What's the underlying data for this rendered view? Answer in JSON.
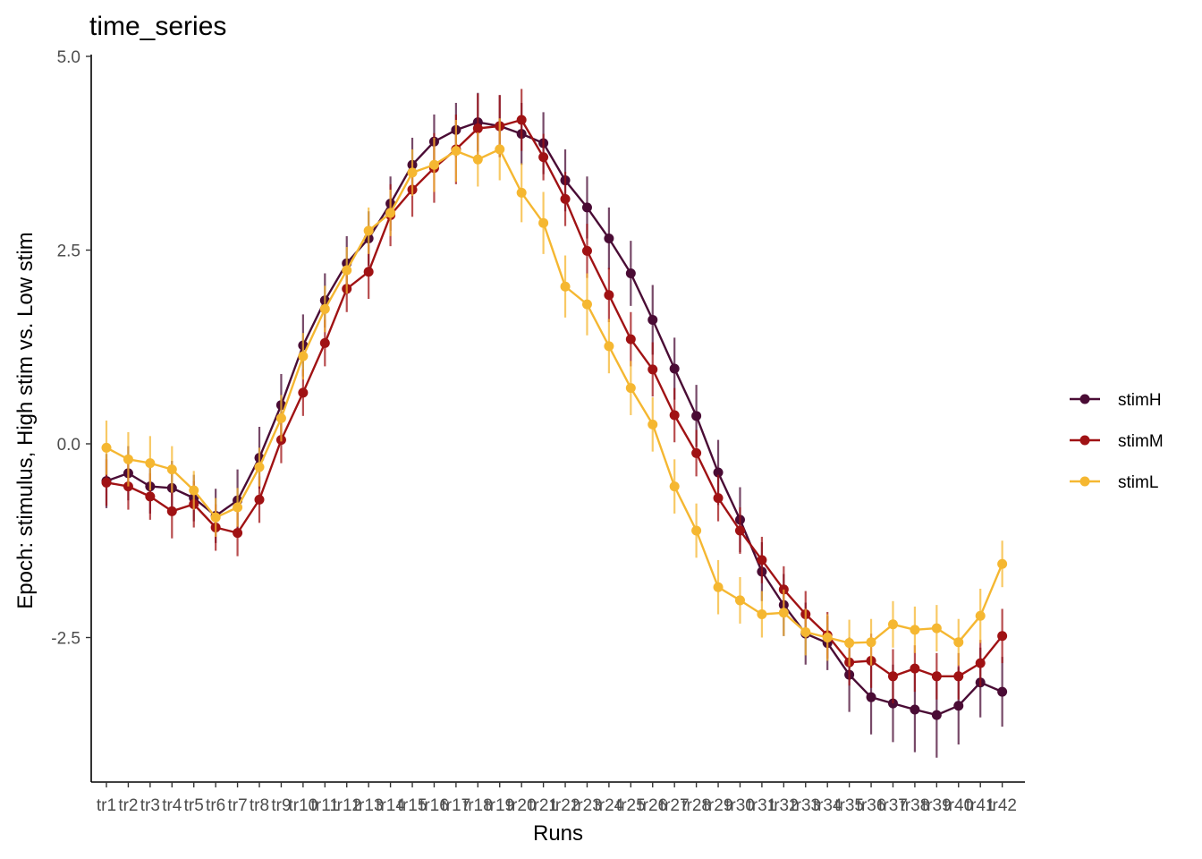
{
  "chart_data": {
    "type": "line",
    "title": "time_series",
    "xlabel": "Runs",
    "ylabel": "Epoch: stimulus, High stim vs. Low stim",
    "categories": [
      "tr1",
      "tr2",
      "tr3",
      "tr4",
      "tr5",
      "tr6",
      "tr7",
      "tr8",
      "tr9",
      "tr10",
      "tr11",
      "tr12",
      "tr13",
      "tr14",
      "tr15",
      "tr16",
      "tr17",
      "tr18",
      "tr19",
      "tr20",
      "tr21",
      "tr22",
      "tr23",
      "tr24",
      "tr25",
      "tr26",
      "tr27",
      "tr28",
      "tr29",
      "tr30",
      "tr31",
      "tr32",
      "tr33",
      "tr34",
      "tr35",
      "tr36",
      "tr37",
      "tr38",
      "tr39",
      "tr40",
      "tr41",
      "tr42"
    ],
    "yticks": [
      5.0,
      2.5,
      0.0,
      -2.5
    ],
    "ytick_labels": [
      "5.0",
      "2.5",
      "0.0",
      "-2.5"
    ],
    "ylim": [
      -4.4,
      5.0
    ],
    "grid": false,
    "legend_position": "right",
    "error_bars": true,
    "series": [
      {
        "name": "stimH",
        "color": "#4a0c35",
        "values": [
          -0.48,
          -0.38,
          -0.55,
          -0.57,
          -0.7,
          -0.93,
          -0.73,
          -0.18,
          0.5,
          1.27,
          1.85,
          2.33,
          2.65,
          3.1,
          3.6,
          3.9,
          4.05,
          4.15,
          4.1,
          4.0,
          3.88,
          3.4,
          3.05,
          2.65,
          2.2,
          1.6,
          0.97,
          0.36,
          -0.37,
          -0.98,
          -1.65,
          -2.08,
          -2.45,
          -2.57,
          -2.98,
          -3.27,
          -3.35,
          -3.43,
          -3.5,
          -3.38,
          -3.08,
          -3.2
        ],
        "errors": [
          0.35,
          0.35,
          0.35,
          0.35,
          0.3,
          0.35,
          0.4,
          0.4,
          0.4,
          0.4,
          0.35,
          0.35,
          0.35,
          0.35,
          0.35,
          0.35,
          0.35,
          0.38,
          0.4,
          0.4,
          0.4,
          0.4,
          0.4,
          0.4,
          0.42,
          0.45,
          0.4,
          0.4,
          0.42,
          0.42,
          0.38,
          0.4,
          0.4,
          0.35,
          0.48,
          0.48,
          0.5,
          0.55,
          0.55,
          0.5,
          0.45,
          0.45
        ]
      },
      {
        "name": "stimM",
        "color": "#a01214",
        "values": [
          -0.5,
          -0.55,
          -0.68,
          -0.87,
          -0.78,
          -1.08,
          -1.15,
          -0.72,
          0.05,
          0.66,
          1.3,
          2.0,
          2.22,
          2.95,
          3.28,
          3.56,
          3.8,
          4.07,
          4.1,
          4.18,
          3.7,
          3.16,
          2.49,
          1.92,
          1.35,
          0.96,
          0.37,
          -0.12,
          -0.7,
          -1.12,
          -1.5,
          -1.88,
          -2.2,
          -2.47,
          -2.82,
          -2.8,
          -3.0,
          -2.9,
          -3.0,
          -3.0,
          -2.83,
          -2.48
        ],
        "errors": [
          0.3,
          0.3,
          0.3,
          0.35,
          0.3,
          0.3,
          0.3,
          0.3,
          0.3,
          0.3,
          0.3,
          0.3,
          0.35,
          0.4,
          0.35,
          0.45,
          0.45,
          0.45,
          0.4,
          0.4,
          0.3,
          0.35,
          0.35,
          0.35,
          0.35,
          0.35,
          0.35,
          0.3,
          0.3,
          0.3,
          0.3,
          0.3,
          0.3,
          0.3,
          0.3,
          0.35,
          0.35,
          0.3,
          0.3,
          0.3,
          0.3,
          0.35
        ]
      },
      {
        "name": "stimL",
        "color": "#f5b731",
        "values": [
          -0.05,
          -0.2,
          -0.25,
          -0.33,
          -0.6,
          -0.95,
          -0.82,
          -0.3,
          0.33,
          1.13,
          1.74,
          2.24,
          2.75,
          2.98,
          3.5,
          3.6,
          3.78,
          3.67,
          3.8,
          3.24,
          2.85,
          2.03,
          1.8,
          1.26,
          0.72,
          0.25,
          -0.55,
          -1.12,
          -1.85,
          -2.02,
          -2.2,
          -2.18,
          -2.43,
          -2.5,
          -2.57,
          -2.56,
          -2.33,
          -2.4,
          -2.38,
          -2.56,
          -2.22,
          -1.55
        ],
        "errors": [
          0.35,
          0.35,
          0.35,
          0.3,
          0.25,
          0.25,
          0.25,
          0.25,
          0.3,
          0.3,
          0.3,
          0.3,
          0.3,
          0.3,
          0.3,
          0.35,
          0.4,
          0.35,
          0.4,
          0.38,
          0.4,
          0.4,
          0.4,
          0.35,
          0.35,
          0.35,
          0.35,
          0.35,
          0.35,
          0.3,
          0.3,
          0.3,
          0.3,
          0.3,
          0.3,
          0.3,
          0.3,
          0.3,
          0.3,
          0.3,
          0.35,
          0.3
        ]
      }
    ]
  }
}
